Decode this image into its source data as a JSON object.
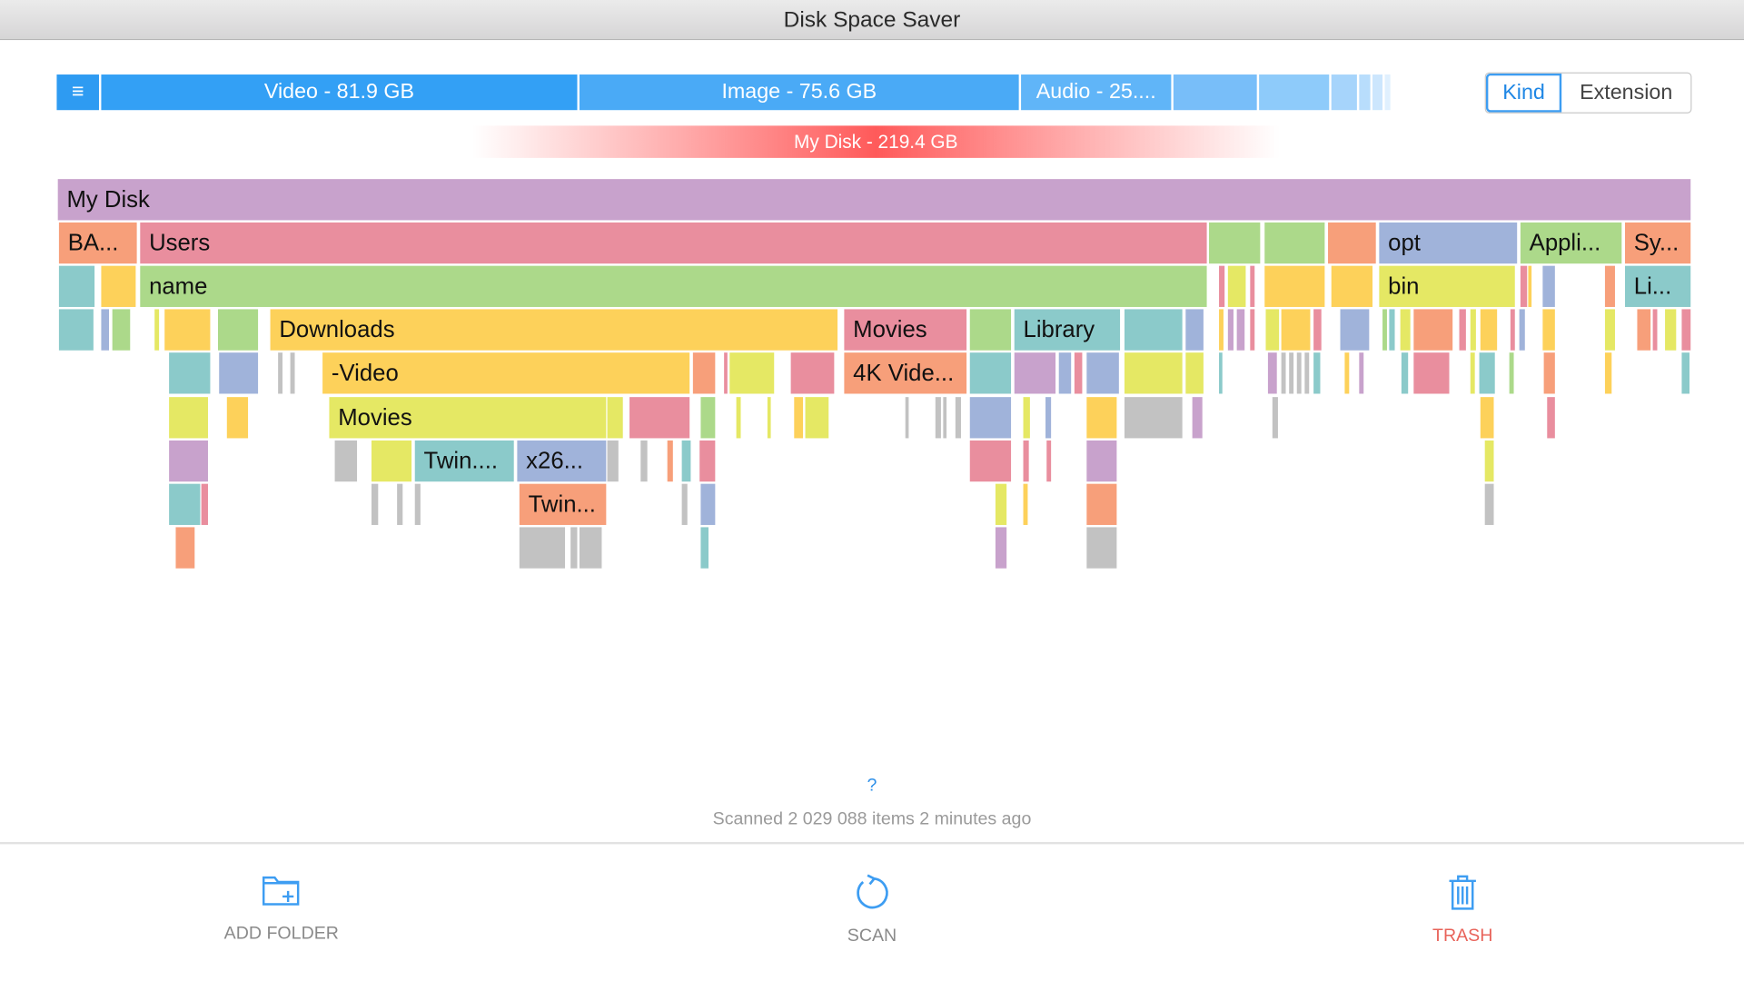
{
  "window": {
    "title": "Disk Space Saver"
  },
  "kind_bar": {
    "menu_icon": "hamburger-icon",
    "segments": [
      {
        "label": "Video - 81.9 GB",
        "color": "#33a0f5"
      },
      {
        "label": "Image - 75.6 GB",
        "color": "#4aaaf6"
      },
      {
        "label": "Audio - 25....",
        "color": "#60b5f8"
      },
      {
        "label": "",
        "color": "#78bef9"
      },
      {
        "label": "",
        "color": "#8ecbfa"
      },
      {
        "label": "",
        "color": "#a6d4fb"
      },
      {
        "label": "",
        "color": "#b8ddfc"
      },
      {
        "label": "",
        "color": "#cce6fd"
      },
      {
        "label": "",
        "color": "#e0f0fe"
      }
    ]
  },
  "view_toggle": {
    "options": [
      "Kind",
      "Extension"
    ],
    "selected": "Kind"
  },
  "disk_bar": {
    "label": "My Disk - 219.4 GB"
  },
  "treemap": {
    "colors": {
      "purple": "#c8a2cc",
      "pink": "#e98e9e",
      "green": "#acd98a",
      "orange": "#f79f7a",
      "yellow": "#fdd15a",
      "teal": "#8bcaca",
      "blue": "#a0b3da",
      "lime": "#e5e864",
      "gray": "#c2c2c2"
    },
    "labels": {
      "root": "My Disk",
      "ba": "BA...",
      "users": "Users",
      "opt": "opt",
      "appli": "Appli...",
      "sy": "Sy...",
      "name": "name",
      "bin": "bin",
      "li": "Li...",
      "downloads": "Downloads",
      "movies1": "Movies",
      "library": "Library",
      "video": "-Video",
      "k4": "4K Vide...",
      "movies2": "Movies",
      "twin1": "Twin....",
      "x26": "x26...",
      "twin2": "Twin..."
    }
  },
  "help": {
    "label": "?"
  },
  "status": {
    "text": "Scanned 2 029 088 items 2 minutes ago"
  },
  "toolbar": {
    "add_folder": "ADD FOLDER",
    "scan": "SCAN",
    "trash": "TRASH",
    "trash_color": "#e8635a",
    "icon_color": "#3d9df2"
  }
}
